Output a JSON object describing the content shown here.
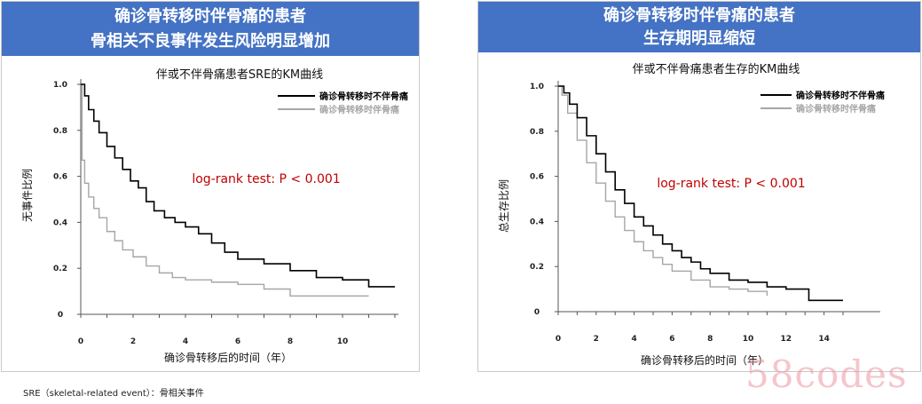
{
  "panels": [
    {
      "banner_lines": [
        "确诊骨转移时伴骨痛的患者",
        "骨相关不良事件发生风险明显增加"
      ]
    },
    {
      "banner_lines": [
        "确诊骨转移时伴骨痛的患者",
        "生存期明显缩短"
      ]
    }
  ],
  "chart_data": [
    {
      "type": "line",
      "subtype": "kaplan-meier",
      "title": "伴或不伴骨痛患者SRE的KM曲线",
      "xlabel": "确诊骨转移后的时间（年）",
      "ylabel": "无事件比例",
      "xlim": [
        0,
        12
      ],
      "ylim": [
        0,
        1.0
      ],
      "xticks": [
        "0",
        "2",
        "4",
        "6",
        "8",
        "10"
      ],
      "yticks": [
        "0",
        "0.2",
        "0.4",
        "0.6",
        "0.8",
        "1.0"
      ],
      "grid": false,
      "legend_position": "top-right",
      "annotation": "log-rank test: P < 0.001",
      "annotation_color": "#c00000",
      "series": [
        {
          "name": "确诊骨转移时不伴骨痛",
          "color": "#000000",
          "x": [
            0,
            0.15,
            0.3,
            0.5,
            0.7,
            1.0,
            1.3,
            1.6,
            1.9,
            2.2,
            2.5,
            2.8,
            3.2,
            3.6,
            4.0,
            4.5,
            5.0,
            5.5,
            6.0,
            7.0,
            8.0,
            9.0,
            10.0,
            11.0,
            12.0
          ],
          "y": [
            1.0,
            0.95,
            0.89,
            0.84,
            0.79,
            0.73,
            0.68,
            0.63,
            0.58,
            0.55,
            0.49,
            0.45,
            0.42,
            0.4,
            0.38,
            0.35,
            0.31,
            0.27,
            0.24,
            0.22,
            0.19,
            0.16,
            0.15,
            0.12,
            0.12
          ]
        },
        {
          "name": "确诊骨转移时伴骨痛",
          "color": "#a6a6a6",
          "x": [
            0,
            0.05,
            0.15,
            0.3,
            0.5,
            0.7,
            1.0,
            1.3,
            1.6,
            2.0,
            2.5,
            3.0,
            3.5,
            4.0,
            5.0,
            6.0,
            7.0,
            8.0,
            9.0,
            10.0,
            11.0
          ],
          "y": [
            1.0,
            0.67,
            0.57,
            0.51,
            0.46,
            0.42,
            0.36,
            0.32,
            0.28,
            0.25,
            0.21,
            0.18,
            0.16,
            0.15,
            0.14,
            0.13,
            0.11,
            0.08,
            0.08,
            0.08,
            0.08
          ]
        }
      ]
    },
    {
      "type": "line",
      "subtype": "kaplan-meier",
      "title": "伴或不伴骨痛患者生存的KM曲线",
      "xlabel": "确诊骨转移后的时间（年）",
      "ylabel": "总生存比例",
      "xlim": [
        0,
        16
      ],
      "ylim": [
        0,
        1.0
      ],
      "xticks": [
        "0",
        "2",
        "4",
        "6",
        "8",
        "10",
        "12",
        "14"
      ],
      "yticks": [
        "0",
        "0.2",
        "0.4",
        "0.6",
        "0.8",
        "1.0"
      ],
      "grid": false,
      "legend_position": "top-right",
      "annotation": "log-rank test: P < 0.001",
      "annotation_color": "#c00000",
      "series": [
        {
          "name": "确诊骨转移时不伴骨痛",
          "color": "#000000",
          "x": [
            0,
            0.3,
            0.6,
            1.0,
            1.5,
            2.0,
            2.5,
            3.0,
            3.5,
            4.0,
            4.5,
            5.0,
            5.5,
            6.0,
            6.5,
            7.0,
            7.5,
            8.0,
            9.0,
            10.0,
            11.0,
            12.0,
            13.0,
            13.2,
            15.0
          ],
          "y": [
            1.0,
            0.97,
            0.92,
            0.86,
            0.78,
            0.7,
            0.62,
            0.54,
            0.48,
            0.42,
            0.38,
            0.34,
            0.3,
            0.27,
            0.24,
            0.22,
            0.19,
            0.17,
            0.14,
            0.13,
            0.11,
            0.1,
            0.1,
            0.05,
            0.05
          ]
        },
        {
          "name": "确诊骨转移时伴骨痛",
          "color": "#a6a6a6",
          "x": [
            0,
            0.2,
            0.5,
            1.0,
            1.5,
            2.0,
            2.5,
            3.0,
            3.5,
            4.0,
            4.5,
            5.0,
            5.5,
            6.0,
            7.0,
            8.0,
            9.0,
            10.0,
            11.0
          ],
          "y": [
            1.0,
            0.96,
            0.88,
            0.76,
            0.66,
            0.57,
            0.49,
            0.42,
            0.36,
            0.31,
            0.27,
            0.24,
            0.21,
            0.18,
            0.14,
            0.11,
            0.1,
            0.09,
            0.07
          ]
        }
      ]
    }
  ],
  "footnote": "SRE（skeletal-related event）：骨相关事件",
  "watermark": "58codes"
}
